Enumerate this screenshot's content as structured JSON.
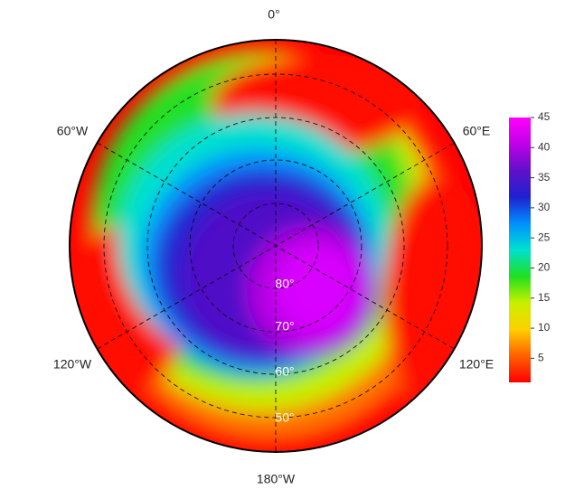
{
  "map": {
    "longitude_labels": [
      "0°",
      "60°E",
      "120°E",
      "180°W",
      "120°W",
      "60°W"
    ],
    "latitude_labels": [
      "80°",
      "70°",
      "60°",
      "50°"
    ]
  },
  "colorbar": {
    "range": [
      1,
      45
    ],
    "ticks": [
      5,
      10,
      15,
      20,
      25,
      30,
      35,
      40,
      45
    ],
    "colors": [
      "#ff0000",
      "#ff6000",
      "#ffd000",
      "#c8f000",
      "#20e020",
      "#00e0d0",
      "#0090ff",
      "#2020d0",
      "#6010c8",
      "#c000e8",
      "#ff00ff"
    ]
  }
}
